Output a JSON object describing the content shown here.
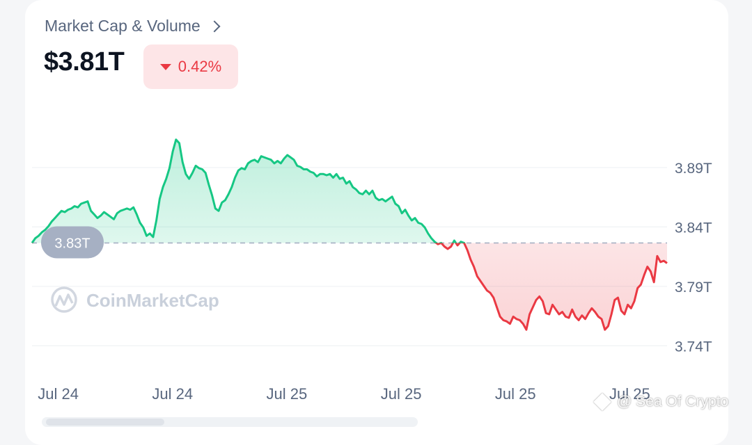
{
  "header": {
    "title": "Market Cap & Volume",
    "value": "$3.81T",
    "change": "0.42%",
    "change_color": "#ea3943",
    "change_bg": "#fde5e7",
    "direction": "down"
  },
  "brand": {
    "logo_text": "CoinMarketCap"
  },
  "watermark": {
    "text": "@ Sea Of Crypto"
  },
  "chart_data": {
    "type": "area",
    "title": "",
    "xlabel": "",
    "ylabel": "",
    "ylim": [
      3.715,
      3.9315
    ],
    "yticks": [
      3.74,
      3.79,
      3.84,
      3.89
    ],
    "ytick_labels": [
      "3.74T",
      "3.79T",
      "3.84T",
      "3.89T"
    ],
    "xtick_labels": [
      "Jul 24",
      "Jul 24",
      "Jul 25",
      "Jul 25",
      "Jul 25",
      "Jul 25"
    ],
    "xtick_positions": [
      0.05,
      0.23,
      0.41,
      0.59,
      0.77,
      0.95
    ],
    "baseline": 3.8265,
    "baseline_label": "3.83T",
    "grid": true,
    "up_color": "#16c784",
    "down_color": "#ea3943",
    "series": [
      {
        "values": [
          3.8265,
          3.8305,
          3.8325,
          3.8355,
          3.8375,
          3.8405,
          3.8445,
          3.8475,
          3.8505,
          3.8535,
          3.8525,
          3.8545,
          3.8555,
          3.8575,
          3.8565,
          3.8595,
          3.8605,
          3.8615,
          3.8535,
          3.8505,
          3.8475,
          3.8495,
          3.8525,
          3.8505,
          3.8485,
          3.8465,
          3.8515,
          3.8535,
          3.8545,
          3.8555,
          3.8545,
          3.8565,
          3.8505,
          3.8435,
          3.8395,
          3.8325,
          3.8345,
          3.8315,
          3.8455,
          3.8635,
          3.8735,
          3.8805,
          3.8895,
          3.9035,
          3.9135,
          3.9105,
          3.8945,
          3.8845,
          3.8805,
          3.8855,
          3.8915,
          3.8895,
          3.8885,
          3.8855,
          3.8755,
          3.8665,
          3.8555,
          3.8535,
          3.8605,
          3.8625,
          3.8675,
          3.8735,
          3.8815,
          3.8875,
          3.8895,
          3.8885,
          3.8935,
          3.8955,
          3.8965,
          3.8945,
          3.8995,
          3.8985,
          3.8975,
          3.8965,
          3.8935,
          3.8955,
          3.8935,
          3.8975,
          3.9005,
          3.8985,
          3.8965,
          3.8915,
          3.8905,
          3.8885,
          3.8885,
          3.8865,
          3.8855,
          3.8825,
          3.8845,
          3.8845,
          3.8835,
          3.8845,
          3.8815,
          3.8845,
          3.8805,
          3.8815,
          3.8765,
          3.8785,
          3.8735,
          3.8715,
          3.8685,
          3.8675,
          3.8705,
          3.8675,
          3.8705,
          3.8645,
          3.8625,
          3.8635,
          3.8615,
          3.8635,
          3.8655,
          3.8595,
          3.8575,
          3.8515,
          3.8545,
          3.8495,
          3.8455,
          3.8475,
          3.8435,
          3.8425,
          3.8395,
          3.8345,
          3.8305,
          3.8275,
          3.8255,
          3.8265,
          3.8235,
          3.8215,
          3.8235,
          3.8285,
          3.8245,
          3.8275,
          3.8265,
          3.8205,
          3.8125,
          3.8065,
          3.7985,
          3.7945,
          3.7905,
          3.7865,
          3.7845,
          3.7805,
          3.7725,
          3.7645,
          3.7615,
          3.7605,
          3.7585,
          3.7645,
          3.7625,
          3.7615,
          3.7585,
          3.7535,
          3.7665,
          3.7725,
          3.7785,
          3.7815,
          3.7775,
          3.7675,
          3.7665,
          3.7745,
          3.7705,
          3.7665,
          3.7685,
          3.7645,
          3.7635,
          3.7705,
          3.7645,
          3.7615,
          3.7655,
          3.7625,
          3.7675,
          3.7715,
          3.7685,
          3.7645,
          3.7625,
          3.7535,
          3.7565,
          3.7665,
          3.7785,
          3.7805,
          3.7695,
          3.7665,
          3.7745,
          3.7715,
          3.7775,
          3.7885,
          3.7915,
          3.7995,
          3.8065,
          3.8025,
          3.7935,
          3.8155,
          3.8105,
          3.8115,
          3.8095
        ]
      }
    ]
  }
}
